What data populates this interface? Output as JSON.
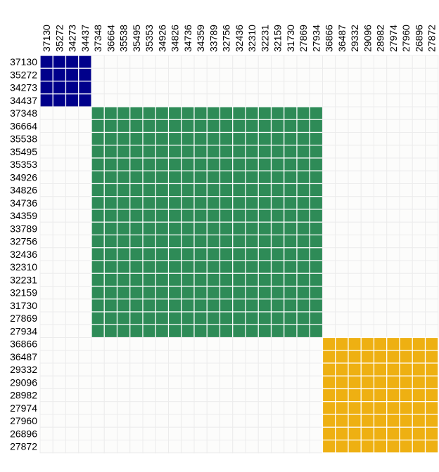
{
  "chart_data": {
    "type": "heatmap",
    "title": "",
    "xlabel": "",
    "ylabel": "",
    "labels": [
      "37130",
      "35272",
      "34273",
      "34437",
      "37348",
      "36664",
      "35538",
      "35495",
      "35353",
      "34926",
      "34826",
      "34736",
      "34359",
      "33789",
      "32756",
      "32436",
      "32310",
      "32231",
      "32159",
      "31730",
      "27869",
      "27934",
      "36866",
      "36487",
      "29332",
      "29096",
      "28982",
      "27974",
      "27960",
      "26896",
      "27872"
    ],
    "x_labels_position": "top",
    "y_labels_position": "left",
    "grid": true,
    "legend": "none",
    "blocks": [
      {
        "members": [
          "37130",
          "35272",
          "34273",
          "34437"
        ],
        "color": "#00008b"
      },
      {
        "members": [
          "37348",
          "36664",
          "35538",
          "35495",
          "35353",
          "34926",
          "34826",
          "34736",
          "34359",
          "33789",
          "32756",
          "32436",
          "32310",
          "32231",
          "32159",
          "31730",
          "27869",
          "27934"
        ],
        "color": "#2e8b57"
      },
      {
        "members": [
          "36866",
          "36487",
          "29332",
          "29096",
          "28982",
          "27974",
          "27960",
          "26896",
          "27872"
        ],
        "color": "#eeb012"
      }
    ],
    "background_cell_color": "#fcfcfb",
    "grid_color": "#ececec"
  }
}
